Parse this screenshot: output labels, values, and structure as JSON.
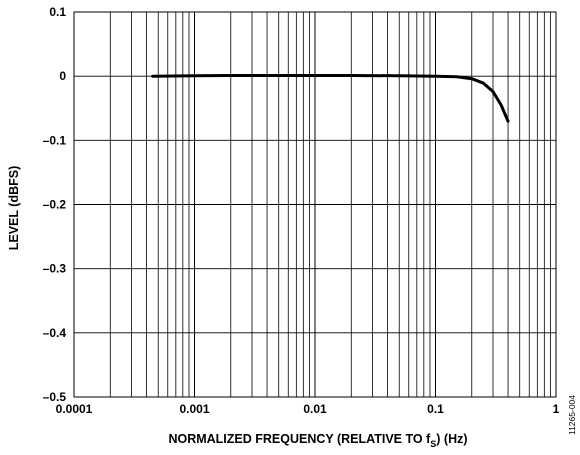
{
  "chart_data": {
    "type": "line",
    "xscale": "log",
    "xlim": [
      0.0001,
      1
    ],
    "ylim": [
      -0.5,
      0.1
    ],
    "x_ticks": [
      0.0001,
      0.001,
      0.01,
      0.1,
      1
    ],
    "x_tick_labels": [
      "0.0001",
      "0.001",
      "0.01",
      "0.1",
      "1"
    ],
    "y_ticks": [
      0.1,
      0,
      -0.1,
      -0.2,
      -0.3,
      -0.4,
      -0.5
    ],
    "y_tick_labels": [
      "0.1",
      "0",
      "–0.1",
      "–0.2",
      "–0.3",
      "–0.4",
      "–0.5"
    ],
    "xlabel_main": "NORMALIZED FREQUENCY (RELATIVE TO f",
    "xlabel_sub": "S",
    "xlabel_tail": ") (Hz)",
    "ylabel": "LEVEL (dBFS)",
    "figure_id": "11265-004",
    "grid": true,
    "series": [
      {
        "color": "#000000",
        "x": [
          0.00045,
          0.001,
          0.002,
          0.005,
          0.01,
          0.02,
          0.05,
          0.1,
          0.15,
          0.2,
          0.25,
          0.3,
          0.35,
          0.4
        ],
        "y": [
          0,
          0.0005,
          0.001,
          0.001,
          0.001,
          0.001,
          0.0005,
          0,
          -0.001,
          -0.004,
          -0.011,
          -0.024,
          -0.045,
          -0.07
        ]
      }
    ]
  }
}
